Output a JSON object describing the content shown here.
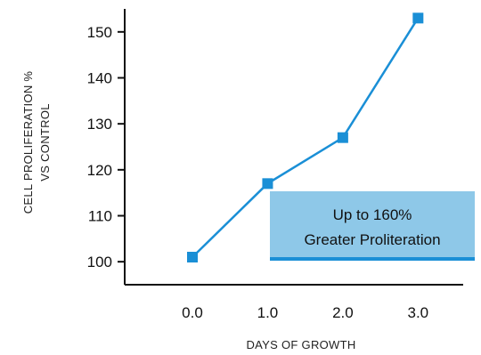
{
  "chart_data": {
    "type": "line",
    "x": [
      0.0,
      1.0,
      2.0,
      3.0
    ],
    "x_tick_labels": [
      "0.0",
      "1.0",
      "2.0",
      "3.0"
    ],
    "y_ticks": [
      100,
      110,
      120,
      130,
      140,
      150
    ],
    "series": [
      {
        "values": [
          101,
          117,
          127,
          153
        ]
      }
    ],
    "xlabel": "DAYS OF GROWTH",
    "ylabel_lines": [
      "CELL PROLIFERATION %",
      "VS CONTROL"
    ],
    "xlim": [
      -0.9,
      3.6
    ],
    "ylim": [
      95,
      155
    ],
    "grid": false,
    "line_color": "#1a8fd6",
    "annotation": {
      "lines": [
        "Up to 160%",
        "Greater Proliteration"
      ],
      "background": "#8ec8e8",
      "underline_color": "#1a8fd6"
    }
  }
}
